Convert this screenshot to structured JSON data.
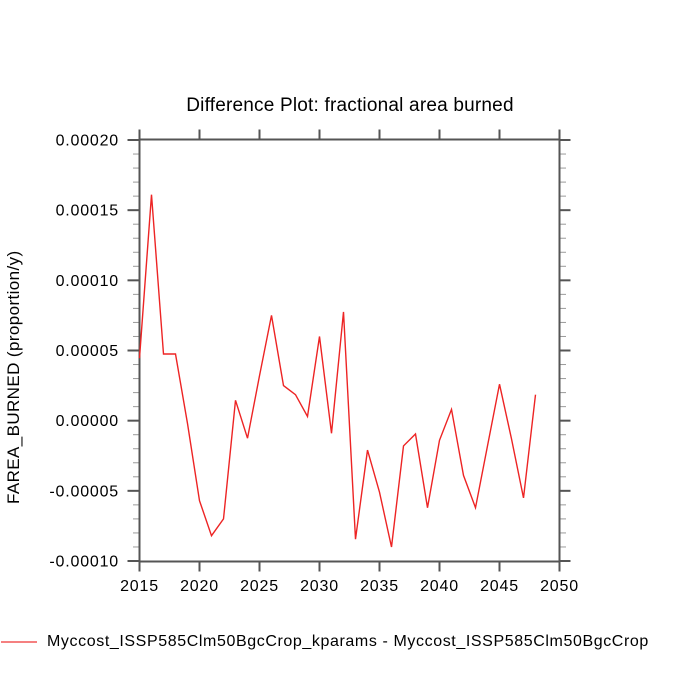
{
  "title": "Difference Plot: fractional area burned",
  "y_axis_label": "FAREA_BURNED  (proportion/y)",
  "legend": {
    "label": "Myccost_ISSP585Clm50BgcCrop_kparams - Myccost_ISSP585Clm50BgcCrop",
    "line_color": "#f58080"
  },
  "colors": {
    "line": "#ed2424",
    "axis": "#555555",
    "minor_tick": "#9a9a9a",
    "text": "#000000",
    "background": "#ffffff"
  },
  "chart_data": {
    "type": "line",
    "title": "Difference Plot: fractional area burned",
    "xlabel": "",
    "ylabel": "FAREA_BURNED  (proportion/y)",
    "xlim": [
      2015,
      2050
    ],
    "ylim": [
      -0.0001,
      0.0002
    ],
    "grid": false,
    "legend_position": "bottom-left",
    "x_major_ticks": [
      2015,
      2020,
      2025,
      2030,
      2035,
      2040,
      2045,
      2050
    ],
    "x_tick_labels": [
      "2015",
      "2020",
      "2025",
      "2030",
      "2035",
      "2040",
      "2045",
      "2050"
    ],
    "y_major_ticks": [
      -0.0001,
      -5e-05,
      0,
      5e-05,
      0.0001,
      0.00015,
      0.0002
    ],
    "y_tick_labels": [
      "-0.00010",
      "-0.00005",
      "0.00000",
      "0.00005",
      "0.00010",
      "0.00015",
      "0.00020"
    ],
    "y_minor_step": 1e-05,
    "x": [
      2015,
      2016,
      2017,
      2018,
      2019,
      2020,
      2021,
      2022,
      2023,
      2024,
      2025,
      2026,
      2027,
      2028,
      2029,
      2030,
      2031,
      2032,
      2033,
      2034,
      2035,
      2036,
      2037,
      2038,
      2039,
      2040,
      2041,
      2042,
      2043,
      2044,
      2045,
      2046,
      2047,
      2048
    ],
    "series": [
      {
        "name": "Myccost_ISSP585Clm50BgcCrop_kparams - Myccost_ISSP585Clm50BgcCrop",
        "color": "#ed2424",
        "values": [
          4.45e-05,
          0.000161,
          4.75e-05,
          4.75e-05,
          -2e-06,
          -5.7e-05,
          -8.2e-05,
          -7e-05,
          1.45e-05,
          -1.25e-05,
          3.2e-05,
          7.5e-05,
          2.5e-05,
          1.85e-05,
          3e-06,
          6e-05,
          -9e-06,
          7.75e-05,
          -8.45e-05,
          -2.1e-05,
          -5.1e-05,
          -9e-05,
          -1.8e-05,
          -9.5e-06,
          -6.2e-05,
          -1.4e-05,
          8e-06,
          -3.9e-05,
          -6.2e-05,
          -1.8e-05,
          2.6e-05,
          -1.3e-05,
          -5.5e-05,
          1.85e-05
        ]
      }
    ]
  }
}
